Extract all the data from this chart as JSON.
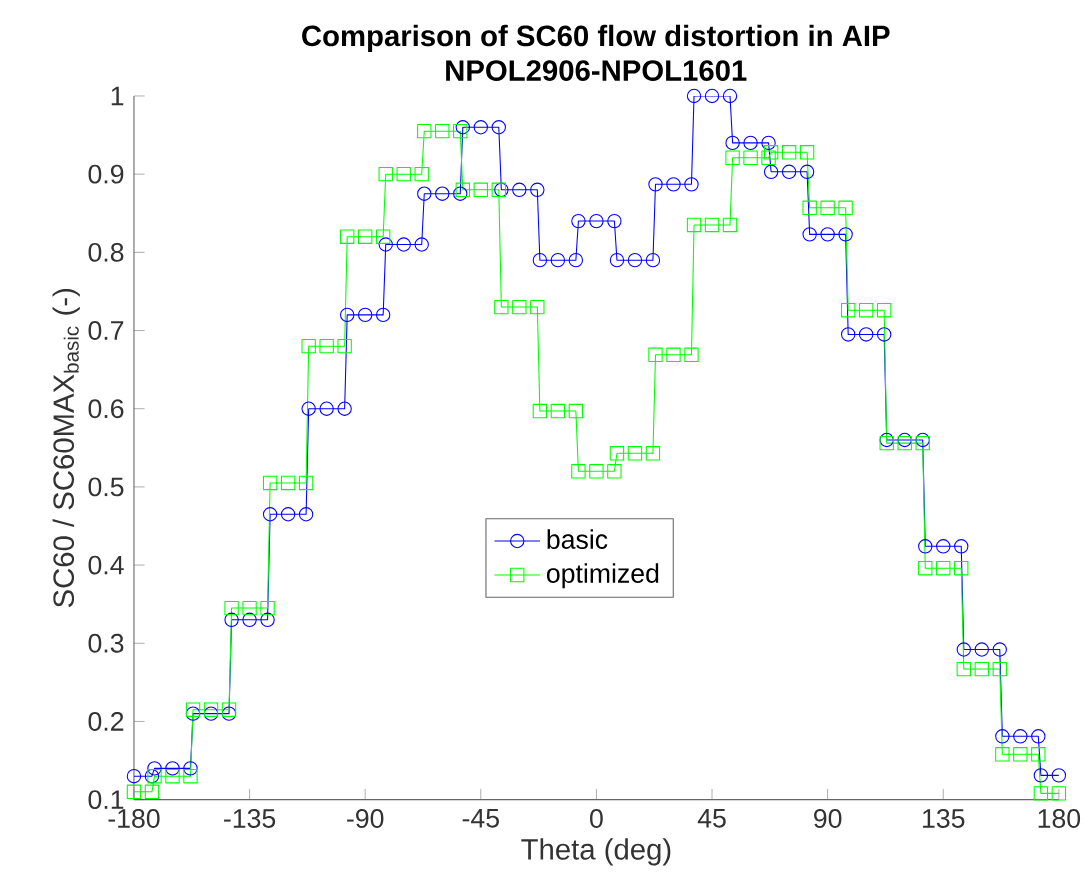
{
  "chart_data": {
    "type": "line",
    "title": "Comparison of SC60 flow distortion in AIP",
    "subtitle": "NPOL2906-NPOL1601",
    "xlabel": "Theta (deg)",
    "ylabel": "SC60 / SC60MAX$_{basic}$ (-)",
    "xlim": [
      -180,
      180
    ],
    "ylim": [
      0.1,
      1
    ],
    "xticks": [
      -180,
      -135,
      -90,
      -45,
      0,
      45,
      90,
      135,
      180
    ],
    "yticks": [
      {
        "value": 0.1,
        "label": "0.1"
      },
      {
        "value": 0.2,
        "label": "0.2"
      },
      {
        "value": 0.3,
        "label": "0.3"
      },
      {
        "value": 0.4,
        "label": "0.4"
      },
      {
        "value": 0.5,
        "label": "0.5"
      },
      {
        "value": 0.6,
        "label": "0.6"
      },
      {
        "value": 0.7,
        "label": "0.7"
      },
      {
        "value": 0.8,
        "label": "0.8"
      },
      {
        "value": 0.9,
        "label": "0.9"
      },
      {
        "value": 1,
        "label": "1"
      }
    ],
    "grid": false,
    "legend": "center",
    "series": [
      {
        "name": "basic",
        "color": "#0000ff",
        "marker": "circle",
        "x": [
          -180,
          -173,
          -172,
          -165,
          -158,
          -157,
          -150,
          -143,
          -142,
          -135,
          -128,
          -127,
          -120,
          -113,
          -112,
          -105,
          -98,
          -97,
          -90,
          -83,
          -82,
          -75,
          -68,
          -67,
          -60,
          -53,
          -52,
          -45,
          -38,
          -37,
          -30,
          -23,
          -22,
          -15,
          -8,
          -7,
          0,
          7,
          8,
          15,
          22,
          23,
          30,
          37,
          38,
          45,
          52,
          53,
          60,
          67,
          68,
          75,
          82,
          83,
          90,
          97,
          98,
          105,
          112,
          113,
          120,
          127,
          128,
          135,
          142,
          143,
          150,
          157,
          158,
          165,
          172,
          173,
          180
        ],
        "values": [
          0.13,
          0.13,
          0.14,
          0.14,
          0.14,
          0.21,
          0.21,
          0.21,
          0.33,
          0.33,
          0.33,
          0.465,
          0.465,
          0.465,
          0.6,
          0.6,
          0.6,
          0.72,
          0.72,
          0.72,
          0.81,
          0.81,
          0.81,
          0.875,
          0.875,
          0.875,
          0.96,
          0.96,
          0.96,
          0.88,
          0.88,
          0.88,
          0.79,
          0.79,
          0.79,
          0.84,
          0.84,
          0.84,
          0.79,
          0.79,
          0.79,
          0.887,
          0.887,
          0.887,
          1.0,
          1.0,
          1.0,
          0.94,
          0.94,
          0.94,
          0.903,
          0.903,
          0.903,
          0.823,
          0.823,
          0.823,
          0.695,
          0.695,
          0.695,
          0.56,
          0.56,
          0.56,
          0.424,
          0.424,
          0.424,
          0.292,
          0.292,
          0.292,
          0.181,
          0.181,
          0.181,
          0.131,
          0.131
        ]
      },
      {
        "name": "optimized",
        "color": "#00ff00",
        "marker": "square",
        "x": [
          -180,
          -173,
          -172,
          -165,
          -158,
          -157,
          -150,
          -143,
          -142,
          -135,
          -128,
          -127,
          -120,
          -113,
          -112,
          -105,
          -98,
          -97,
          -90,
          -83,
          -82,
          -75,
          -68,
          -67,
          -60,
          -53,
          -52,
          -45,
          -38,
          -37,
          -30,
          -23,
          -22,
          -15,
          -8,
          -7,
          0,
          7,
          8,
          15,
          22,
          23,
          30,
          37,
          38,
          45,
          52,
          53,
          60,
          67,
          68,
          75,
          82,
          83,
          90,
          97,
          98,
          105,
          112,
          113,
          120,
          127,
          128,
          135,
          142,
          143,
          150,
          157,
          158,
          165,
          172,
          173,
          180
        ],
        "values": [
          0.11,
          0.11,
          0.13,
          0.13,
          0.13,
          0.215,
          0.215,
          0.215,
          0.345,
          0.345,
          0.345,
          0.505,
          0.505,
          0.505,
          0.68,
          0.68,
          0.68,
          0.82,
          0.82,
          0.82,
          0.9,
          0.9,
          0.9,
          0.955,
          0.955,
          0.955,
          0.88,
          0.88,
          0.88,
          0.73,
          0.73,
          0.73,
          0.597,
          0.597,
          0.597,
          0.52,
          0.52,
          0.52,
          0.543,
          0.543,
          0.543,
          0.669,
          0.669,
          0.669,
          0.835,
          0.835,
          0.835,
          0.921,
          0.921,
          0.921,
          0.928,
          0.928,
          0.928,
          0.857,
          0.857,
          0.857,
          0.726,
          0.726,
          0.726,
          0.556,
          0.556,
          0.556,
          0.396,
          0.396,
          0.396,
          0.267,
          0.267,
          0.267,
          0.158,
          0.158,
          0.158,
          0.108,
          0.108
        ]
      }
    ]
  }
}
